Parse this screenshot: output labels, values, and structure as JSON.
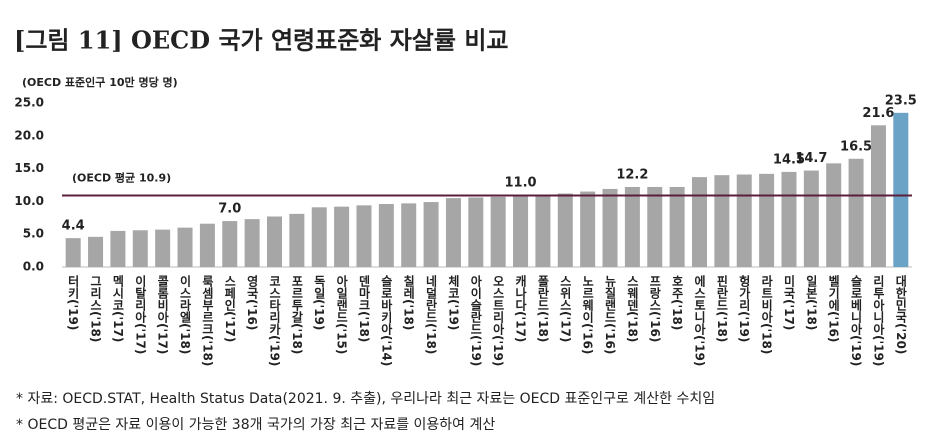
{
  "chart_data": {
    "type": "bar",
    "title": "[그림 11] OECD 국가 연령표준화 자살률 비교",
    "y_label": "(OECD 표준인구 10만 명당 명)",
    "categories": [
      "터키('19)",
      "그리스('18)",
      "멕시코('17)",
      "이탈리아('17)",
      "콜롬비아('17)",
      "이스라엘('18)",
      "룩셈부르크('18)",
      "스페인('17)",
      "영국('16)",
      "코스타리카('19)",
      "포르투갈('18)",
      "독일('19)",
      "아일랜드('15)",
      "덴마크('18)",
      "슬로바키아('14)",
      "칠레('18)",
      "네덜란드('18)",
      "체코('19)",
      "아이슬란드('19)",
      "오스트리아('19)",
      "캐나다('17)",
      "폴란드('18)",
      "스위스('17)",
      "노르웨이('16)",
      "뉴질랜드('16)",
      "스웨덴('18)",
      "프랑스('16)",
      "호주('18)",
      "에스토니아('19)",
      "핀란드('18)",
      "헝가리('19)",
      "라트비아('18)",
      "미국('17)",
      "일본('18)",
      "벨기에('16)",
      "슬로베니아('19)",
      "리투아니아('19)",
      "대한민국('20)"
    ],
    "values": [
      4.4,
      4.6,
      5.5,
      5.6,
      5.7,
      6.0,
      6.6,
      7.0,
      7.3,
      7.7,
      8.1,
      9.1,
      9.2,
      9.4,
      9.6,
      9.7,
      9.9,
      10.5,
      10.6,
      10.7,
      11.0,
      11.0,
      11.2,
      11.5,
      11.9,
      12.2,
      12.2,
      12.2,
      13.7,
      14.0,
      14.1,
      14.2,
      14.5,
      14.7,
      15.8,
      16.5,
      21.6,
      23.5
    ],
    "value_labels": [
      "4.4",
      null,
      null,
      null,
      null,
      null,
      null,
      "7.0",
      null,
      null,
      null,
      null,
      null,
      null,
      null,
      null,
      null,
      null,
      null,
      null,
      "11.0",
      null,
      null,
      null,
      null,
      "12.2",
      null,
      null,
      null,
      null,
      null,
      null,
      "14.5",
      "14.7",
      null,
      "16.5",
      "21.6",
      "23.5"
    ],
    "colors": [
      "#a6a6a6",
      "#a6a6a6",
      "#a6a6a6",
      "#a6a6a6",
      "#a6a6a6",
      "#a6a6a6",
      "#a6a6a6",
      "#a6a6a6",
      "#a6a6a6",
      "#a6a6a6",
      "#a6a6a6",
      "#a6a6a6",
      "#a6a6a6",
      "#a6a6a6",
      "#a6a6a6",
      "#a6a6a6",
      "#a6a6a6",
      "#a6a6a6",
      "#a6a6a6",
      "#a6a6a6",
      "#a6a6a6",
      "#a6a6a6",
      "#a6a6a6",
      "#a6a6a6",
      "#a6a6a6",
      "#a6a6a6",
      "#a6a6a6",
      "#a6a6a6",
      "#a6a6a6",
      "#a6a6a6",
      "#a6a6a6",
      "#a6a6a6",
      "#a6a6a6",
      "#a6a6a6",
      "#a6a6a6",
      "#a6a6a6",
      "#a6a6a6",
      "#6aa3c6"
    ],
    "ylim": [
      0,
      25
    ],
    "yticks": [
      {
        "value": 0,
        "label": "0.0"
      },
      {
        "value": 5,
        "label": "5.0"
      },
      {
        "value": 10,
        "label": "10.0"
      },
      {
        "value": 15,
        "label": "15.0"
      },
      {
        "value": 20,
        "label": "20.0"
      },
      {
        "value": 25,
        "label": "25.0"
      }
    ],
    "reference": {
      "value": 10.9,
      "label": "(OECD 평균 10.9)",
      "color": "#5c1f3a"
    },
    "notes": [
      "* 자료: OECD.STAT, Health Status Data(2021. 9. 추출), 우리나라 최근 자료는 OECD 표준인구로 계산한 수치임",
      "* OECD 평균은 자료 이용이 가능한 38개 국가의 가장 최근 자료를 이용하여 계산"
    ]
  }
}
